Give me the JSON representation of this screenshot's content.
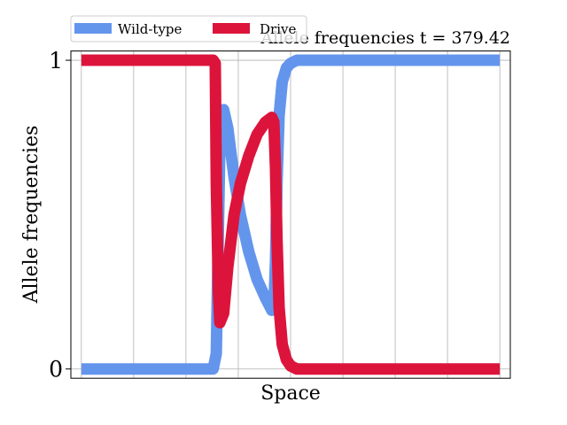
{
  "chart_data": {
    "type": "line",
    "title": "Allele frequencies t = 379.42",
    "xlabel": "Space",
    "ylabel": "Allele frequencies",
    "xlim": [
      -0.5,
      20.5
    ],
    "ylim": [
      -0.03,
      1.03
    ],
    "yticks": [
      0,
      1
    ],
    "ytick_labels": [
      "0",
      "1"
    ],
    "x_gridlines": [
      0,
      2.5,
      5,
      7.5,
      10,
      12.5,
      15,
      17.5,
      20
    ],
    "y_gridlines": [
      0,
      1
    ],
    "grid": true,
    "legend_position": "top-left",
    "series": [
      {
        "name": "Wild-type",
        "color": "#6495ED",
        "x": [
          0,
          3,
          6.3,
          6.45,
          6.55,
          6.62,
          6.8,
          7.0,
          7.3,
          7.6,
          8.0,
          8.4,
          8.8,
          9.1,
          9.2,
          9.28,
          9.35,
          9.45,
          9.6,
          9.8,
          10.0,
          10.3,
          11,
          13,
          16,
          20
        ],
        "values": [
          0,
          0,
          0,
          0.05,
          0.45,
          0.72,
          0.84,
          0.78,
          0.62,
          0.5,
          0.38,
          0.29,
          0.23,
          0.19,
          0.2,
          0.35,
          0.6,
          0.82,
          0.93,
          0.975,
          0.99,
          1.0,
          1,
          1,
          1,
          1
        ]
      },
      {
        "name": "Drive",
        "color": "#DC143C",
        "x": [
          0,
          3,
          6.3,
          6.4,
          6.45,
          6.55,
          6.62,
          6.8,
          7.0,
          7.3,
          7.6,
          8.0,
          8.4,
          8.8,
          9.1,
          9.2,
          9.28,
          9.35,
          9.45,
          9.6,
          9.8,
          10.0,
          10.3,
          11,
          13,
          16,
          20
        ],
        "values": [
          1,
          1,
          1,
          0.99,
          0.6,
          0.25,
          0.15,
          0.18,
          0.33,
          0.5,
          0.6,
          0.69,
          0.76,
          0.8,
          0.815,
          0.8,
          0.65,
          0.42,
          0.2,
          0.08,
          0.03,
          0.01,
          0,
          0,
          0,
          0,
          0
        ]
      }
    ]
  }
}
